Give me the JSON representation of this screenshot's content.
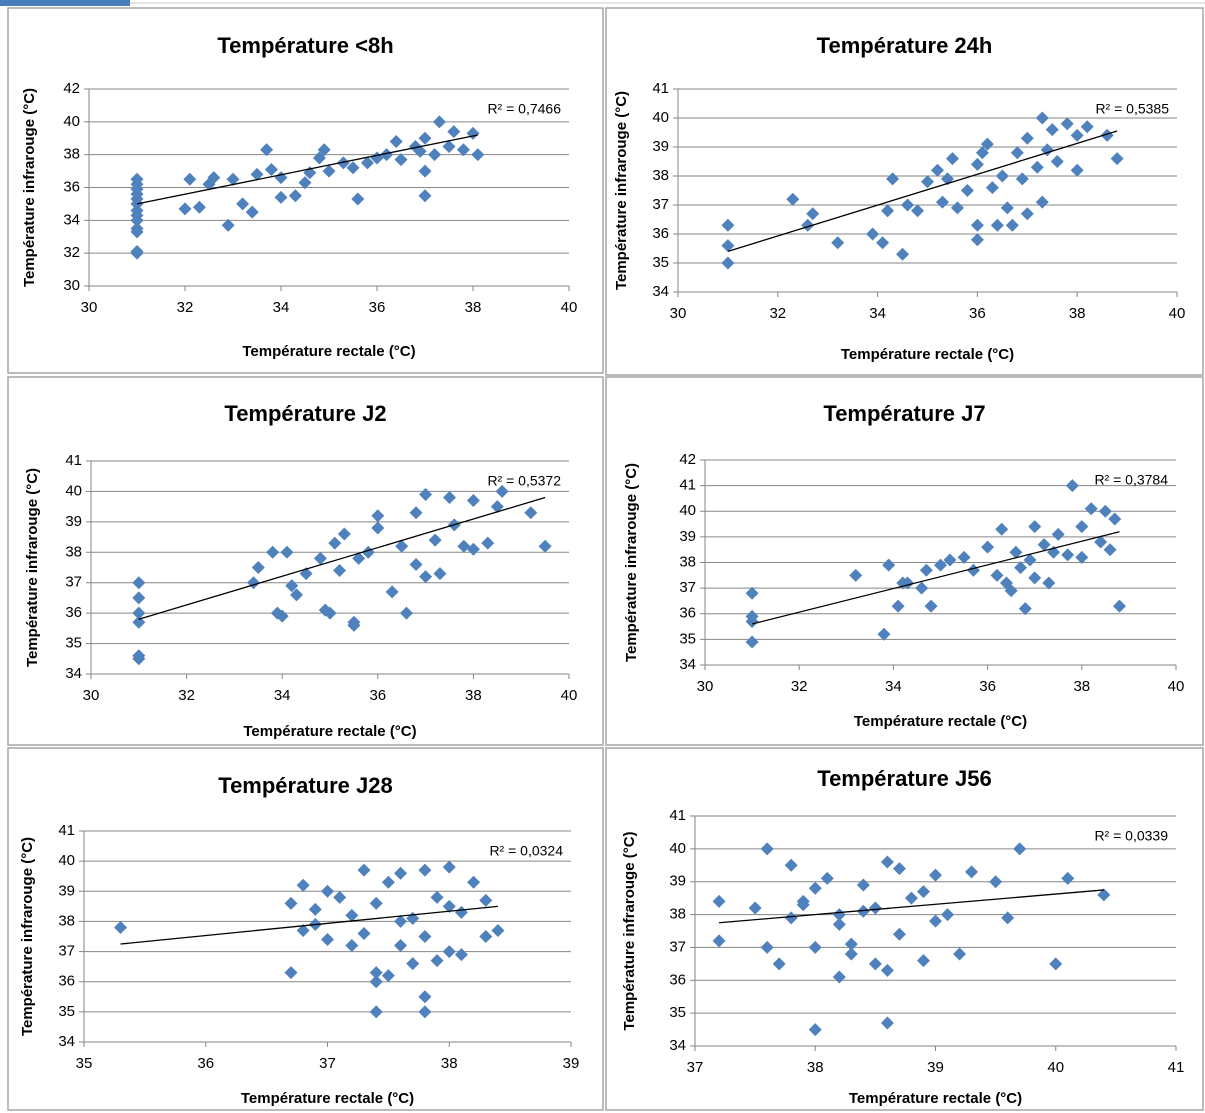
{
  "chart_data": [
    {
      "type": "scatter",
      "title": "Température <8h",
      "x_label": "Température rectale (°C)",
      "y_label": "Température infrarouge (°C)",
      "color": "#4f81bd",
      "grid": true,
      "xlim": [
        30,
        40
      ],
      "xticks": [
        30,
        32,
        34,
        36,
        38,
        40
      ],
      "ylim": [
        30,
        42
      ],
      "yticks": [
        30,
        32,
        34,
        36,
        38,
        40,
        42
      ],
      "x": [
        31,
        31,
        31,
        31,
        31,
        31,
        31,
        31,
        31,
        31,
        31,
        31,
        31,
        32,
        32.1,
        32.3,
        32.5,
        32.9,
        33,
        33.2,
        33.4,
        33.5,
        33.7,
        34,
        34,
        34.3,
        34.5,
        34.8,
        34.9,
        35,
        35.3,
        35.6,
        35.8,
        36,
        36.2,
        36.5,
        36.8,
        37,
        37,
        37,
        37.2,
        37.3,
        37.5,
        37.6,
        37.8,
        38.1,
        38,
        32.6,
        33.8,
        34.6,
        35.5,
        36.4,
        36.9
      ],
      "values": [
        32,
        32.1,
        33.3,
        33.5,
        34,
        34.3,
        34.6,
        35,
        35.3,
        35.6,
        35.9,
        36.2,
        36.5,
        34.7,
        36.5,
        34.8,
        36.2,
        33.7,
        36.5,
        35,
        34.5,
        36.8,
        38.3,
        36.6,
        35.4,
        35.5,
        36.3,
        37.8,
        38.3,
        37,
        37.5,
        35.3,
        37.5,
        37.8,
        38,
        37.7,
        38.5,
        35.5,
        37,
        39,
        38,
        40,
        38.5,
        39.4,
        38.3,
        38,
        39.3,
        36.6,
        37.1,
        36.9,
        37.2,
        38.8,
        38.2
      ],
      "trendline": {
        "x": [
          31,
          38.1
        ],
        "y": [
          35,
          39.2
        ],
        "color": "#000000"
      },
      "annotation": "R² = 0,7466"
    },
    {
      "type": "scatter",
      "title": "Température 24h",
      "x_label": "Température rectale (°C)",
      "y_label": "Température infrarouge (°C)",
      "color": "#4f81bd",
      "grid": true,
      "xlim": [
        30,
        40
      ],
      "xticks": [
        30,
        32,
        34,
        36,
        38,
        40
      ],
      "ylim": [
        34,
        41
      ],
      "yticks": [
        34,
        35,
        36,
        37,
        38,
        39,
        40,
        41
      ],
      "x": [
        31,
        31,
        31,
        32.3,
        32.6,
        32.7,
        33.2,
        33.9,
        34.1,
        34.2,
        34.3,
        34.5,
        34.6,
        34.8,
        35,
        35.2,
        35.3,
        35.5,
        35.6,
        35.8,
        36,
        36,
        36,
        36.2,
        36.4,
        36.5,
        36.6,
        36.7,
        36.8,
        37,
        37,
        37.2,
        37.3,
        37.3,
        37.5,
        37.6,
        37.8,
        38,
        38,
        38.2,
        38.6,
        38.8,
        36.3,
        35.4,
        36.9,
        37.4,
        36.1
      ],
      "values": [
        36.3,
        35.6,
        35,
        37.2,
        36.3,
        36.7,
        35.7,
        36,
        35.7,
        36.8,
        37.9,
        35.3,
        37,
        36.8,
        37.8,
        38.2,
        37.1,
        38.6,
        36.9,
        37.5,
        35.8,
        36.3,
        38.4,
        39.1,
        36.3,
        38,
        36.9,
        36.3,
        38.8,
        39.3,
        36.7,
        38.3,
        37.1,
        40,
        39.6,
        38.5,
        39.8,
        39.4,
        38.2,
        39.7,
        39.4,
        38.6,
        37.6,
        37.9,
        37.9,
        38.9,
        38.8
      ],
      "trendline": {
        "x": [
          31,
          38.8
        ],
        "y": [
          35.4,
          39.55
        ],
        "color": "#000000"
      },
      "annotation": "R² = 0,5385"
    },
    {
      "type": "scatter",
      "title": "Température J2",
      "x_label": "Température rectale (°C)",
      "y_label": "Température infrarouge (°C)",
      "color": "#4f81bd",
      "grid": true,
      "xlim": [
        30,
        40
      ],
      "xticks": [
        30,
        32,
        34,
        36,
        38,
        40
      ],
      "ylim": [
        34,
        41
      ],
      "yticks": [
        34,
        35,
        36,
        37,
        38,
        39,
        40,
        41
      ],
      "x": [
        31,
        31,
        31,
        31,
        31,
        31,
        33.4,
        33.5,
        33.8,
        33.9,
        34,
        34.1,
        34.2,
        34.3,
        34.5,
        34.8,
        34.9,
        35,
        35.1,
        35.3,
        35.5,
        35.5,
        35.6,
        36,
        36,
        36.3,
        36.5,
        36.6,
        36.8,
        37,
        37,
        37.2,
        37.3,
        37.5,
        37.8,
        38,
        38,
        38.3,
        38.5,
        38.6,
        39.2,
        39.5,
        35.8,
        36.8,
        37.6,
        35.2
      ],
      "values": [
        37,
        36.5,
        36,
        35.7,
        34.6,
        34.5,
        37,
        37.5,
        38,
        36,
        35.9,
        38,
        36.9,
        36.6,
        37.3,
        37.8,
        36.1,
        36,
        38.3,
        38.6,
        35.6,
        35.7,
        37.8,
        38.8,
        39.2,
        36.7,
        38.2,
        36,
        39.3,
        37.2,
        39.9,
        38.4,
        37.3,
        39.8,
        38.2,
        39.7,
        38.1,
        38.3,
        39.5,
        40,
        39.3,
        38.2,
        38,
        37.6,
        38.9,
        37.4
      ],
      "trendline": {
        "x": [
          31,
          39.5
        ],
        "y": [
          35.8,
          39.8
        ],
        "color": "#000000"
      },
      "annotation": "R² = 0,5372"
    },
    {
      "type": "scatter",
      "title": "Température J7",
      "x_label": "Température rectale (°C)",
      "y_label": "Température infrarouge (°C)",
      "color": "#4f81bd",
      "grid": true,
      "xlim": [
        30,
        40
      ],
      "xticks": [
        30,
        32,
        34,
        36,
        38,
        40
      ],
      "ylim": [
        34,
        42
      ],
      "yticks": [
        34,
        35,
        36,
        37,
        38,
        39,
        40,
        41,
        42
      ],
      "x": [
        31,
        31,
        31,
        31,
        33.2,
        33.8,
        33.9,
        34.1,
        34.2,
        34.3,
        34.6,
        34.7,
        34.8,
        35,
        35.2,
        35.5,
        35.7,
        36,
        36.2,
        36.3,
        36.4,
        36.5,
        36.6,
        36.8,
        37,
        37,
        37.2,
        37.3,
        37.5,
        37.7,
        37.8,
        38,
        38,
        38.2,
        38.4,
        38.5,
        38.6,
        38.7,
        38.8,
        36.9,
        37.4,
        36.7
      ],
      "values": [
        36.8,
        35.9,
        35.7,
        34.9,
        37.5,
        35.2,
        37.9,
        36.3,
        37.2,
        37.2,
        37,
        37.7,
        36.3,
        37.9,
        38.1,
        38.2,
        37.7,
        38.6,
        37.5,
        39.3,
        37.2,
        36.9,
        38.4,
        36.2,
        39.4,
        37.4,
        38.7,
        37.2,
        39.1,
        38.3,
        41,
        39.4,
        38.2,
        40.1,
        38.8,
        40,
        38.5,
        39.7,
        36.3,
        38.1,
        38.4,
        37.8
      ],
      "trendline": {
        "x": [
          31,
          38.8
        ],
        "y": [
          35.6,
          39.2
        ],
        "color": "#000000"
      },
      "annotation": "R² = 0,3784"
    },
    {
      "type": "scatter",
      "title": "Température J28",
      "x_label": "Température rectale (°C)",
      "y_label": "Température infrarouge (°C)",
      "color": "#4f81bd",
      "grid": true,
      "xlim": [
        35,
        39
      ],
      "xticks": [
        35,
        36,
        37,
        38,
        39
      ],
      "ylim": [
        34,
        41
      ],
      "yticks": [
        34,
        35,
        36,
        37,
        38,
        39,
        40,
        41
      ],
      "x": [
        35.3,
        36.7,
        36.7,
        36.8,
        36.8,
        36.9,
        37,
        37,
        37.2,
        37.2,
        37.3,
        37.3,
        37.4,
        37.4,
        37.4,
        37.4,
        37.5,
        37.5,
        37.6,
        37.6,
        37.7,
        37.8,
        37.8,
        37.8,
        37.8,
        37.9,
        38,
        38,
        38.1,
        38.2,
        38.3,
        38.3,
        38.4,
        38.1,
        37.7,
        37.9,
        37.6,
        38,
        37.1,
        36.9
      ],
      "values": [
        37.8,
        38.6,
        36.3,
        39.2,
        37.7,
        38.4,
        39,
        37.4,
        38.2,
        37.2,
        39.7,
        37.6,
        38.6,
        36.3,
        36,
        35,
        39.3,
        36.2,
        37.2,
        39.6,
        38.1,
        37.5,
        35.5,
        35,
        39.7,
        36.7,
        39.8,
        37,
        38.3,
        39.3,
        38.7,
        37.5,
        37.7,
        36.9,
        36.6,
        38.8,
        38,
        38.5,
        38.8,
        37.9
      ],
      "trendline": {
        "x": [
          35.3,
          38.4
        ],
        "y": [
          37.25,
          38.5
        ],
        "color": "#000000"
      },
      "annotation": "R² = 0,0324"
    },
    {
      "type": "scatter",
      "title": "Température J56",
      "x_label": "Température rectale (°C)",
      "y_label": "Température infrarouge (°C)",
      "color": "#4f81bd",
      "grid": true,
      "xlim": [
        37,
        41
      ],
      "xticks": [
        37,
        38,
        39,
        40,
        41
      ],
      "ylim": [
        34,
        41
      ],
      "yticks": [
        34,
        35,
        36,
        37,
        38,
        39,
        40,
        41
      ],
      "x": [
        37.2,
        37.2,
        37.5,
        37.6,
        37.6,
        37.7,
        37.8,
        37.8,
        37.9,
        38,
        38,
        38,
        38.1,
        38.2,
        38.2,
        38.3,
        38.4,
        38.5,
        38.5,
        38.6,
        38.6,
        38.7,
        38.7,
        38.8,
        38.9,
        39,
        39,
        39.1,
        39.2,
        39.3,
        39.5,
        39.6,
        39.7,
        40,
        40.1,
        40.4,
        38.3,
        38.4,
        38.9,
        37.9,
        38.6,
        38.2
      ],
      "values": [
        38.4,
        37.2,
        38.2,
        40,
        37,
        36.5,
        39.5,
        37.9,
        38.4,
        34.5,
        37,
        38.8,
        39.1,
        36.1,
        38,
        37.1,
        38.9,
        36.5,
        38.2,
        34.7,
        39.6,
        37.4,
        39.4,
        38.5,
        36.6,
        39.2,
        37.8,
        38,
        36.8,
        39.3,
        39,
        37.9,
        40,
        36.5,
        39.1,
        38.6,
        36.8,
        38.1,
        38.7,
        38.3,
        36.3,
        37.7
      ],
      "trendline": {
        "x": [
          37.2,
          40.4
        ],
        "y": [
          37.75,
          38.75
        ],
        "color": "#000000"
      },
      "annotation": "R² = 0,0339"
    }
  ]
}
